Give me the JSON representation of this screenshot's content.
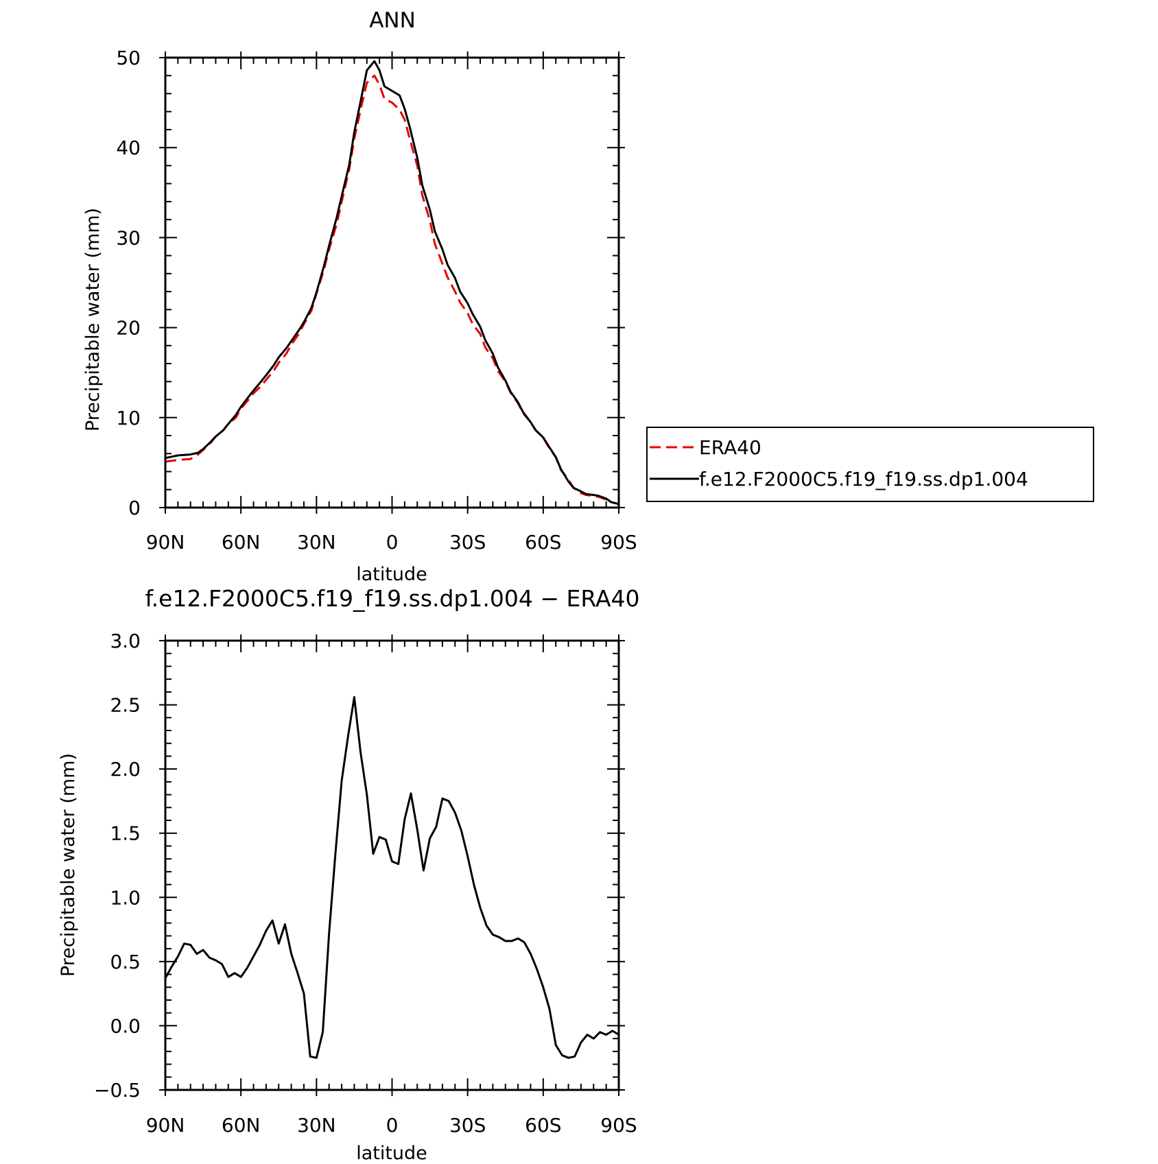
{
  "chart_data": [
    {
      "type": "line",
      "title": "ANN",
      "xlabel": "latitude",
      "ylabel": "Precipitable water (mm)",
      "x_ticks": [
        {
          "value": 90,
          "label": "90N"
        },
        {
          "value": 60,
          "label": "60N"
        },
        {
          "value": 30,
          "label": "30N"
        },
        {
          "value": 0,
          "label": "0"
        },
        {
          "value": -30,
          "label": "30S"
        },
        {
          "value": -60,
          "label": "60S"
        },
        {
          "value": -90,
          "label": "90S"
        }
      ],
      "y_ticks": [
        {
          "value": 0,
          "label": "0"
        },
        {
          "value": 10,
          "label": "10"
        },
        {
          "value": 20,
          "label": "20"
        },
        {
          "value": 30,
          "label": "30"
        },
        {
          "value": 40,
          "label": "40"
        },
        {
          "value": 50,
          "label": "50"
        }
      ],
      "xlim": [
        90,
        -90
      ],
      "ylim": [
        0,
        50
      ],
      "grid": false,
      "legend_position": "right",
      "series": [
        {
          "name": "ERA40",
          "color": "#e60000",
          "style": "dashed",
          "x": [
            90,
            85,
            80,
            77,
            75,
            72,
            70,
            67,
            65,
            62,
            60,
            57,
            55,
            52,
            50,
            47,
            45,
            42,
            40,
            37,
            35,
            32,
            30,
            27,
            25,
            22,
            20,
            17,
            15,
            12,
            10,
            7,
            5,
            3,
            0,
            -3,
            -5,
            -7,
            -10,
            -12,
            -15,
            -17,
            -20,
            -22,
            -25,
            -27,
            -30,
            -32,
            -35,
            -37,
            -40,
            -42,
            -45,
            -47,
            -50,
            -52,
            -55,
            -57,
            -60,
            -62,
            -65,
            -67,
            -70,
            -72,
            -75,
            -77,
            -80,
            -82,
            -85,
            -87,
            -90
          ],
          "y": [
            5.1,
            5.3,
            5.4,
            5.9,
            6.4,
            7.2,
            7.9,
            8.6,
            9.3,
            10.0,
            11.0,
            12.0,
            12.7,
            13.5,
            14.2,
            15.2,
            16.1,
            17.1,
            18.1,
            19.3,
            20.4,
            21.9,
            23.8,
            26.5,
            28.7,
            31.5,
            34.0,
            37.6,
            41.0,
            44.8,
            47.2,
            48.0,
            47.0,
            45.4,
            45.0,
            44.2,
            43.1,
            41.0,
            38.0,
            34.7,
            31.9,
            29.3,
            27.1,
            25.6,
            24.0,
            22.8,
            21.6,
            20.4,
            19.3,
            17.8,
            16.6,
            15.2,
            14.0,
            12.8,
            11.6,
            10.5,
            9.5,
            8.6,
            7.8,
            6.8,
            5.6,
            4.2,
            3.1,
            2.2,
            1.6,
            1.4,
            1.3,
            1.2,
            0.9,
            0.6,
            0.4
          ]
        },
        {
          "name": "f.e12.F2000C5.f19_f19.ss.dp1.004",
          "color": "#000000",
          "style": "solid",
          "x": [
            90,
            85,
            80,
            77,
            75,
            72,
            70,
            67,
            65,
            62,
            60,
            57,
            55,
            52,
            50,
            47,
            45,
            42,
            40,
            37,
            35,
            32,
            30,
            27,
            25,
            22,
            20,
            17,
            15,
            12,
            10,
            7,
            5,
            3,
            0,
            -3,
            -5,
            -7,
            -10,
            -12,
            -15,
            -17,
            -20,
            -22,
            -25,
            -27,
            -30,
            -32,
            -35,
            -37,
            -40,
            -42,
            -45,
            -47,
            -50,
            -52,
            -55,
            -57,
            -60,
            -62,
            -65,
            -67,
            -70,
            -72,
            -75,
            -77,
            -80,
            -82,
            -85,
            -87,
            -90
          ],
          "y": [
            5.5,
            5.8,
            5.9,
            6.1,
            6.5,
            7.3,
            7.9,
            8.6,
            9.3,
            10.3,
            11.2,
            12.3,
            13.0,
            14.0,
            14.7,
            15.8,
            16.7,
            17.7,
            18.5,
            19.7,
            20.6,
            22.2,
            23.9,
            26.9,
            29.1,
            32.2,
            34.6,
            38.1,
            41.7,
            45.8,
            48.6,
            49.6,
            48.6,
            46.8,
            46.3,
            45.8,
            44.3,
            42.3,
            38.9,
            35.8,
            33.1,
            30.7,
            28.7,
            27.0,
            25.5,
            24.0,
            22.7,
            21.5,
            20.1,
            18.6,
            17.1,
            15.6,
            14.1,
            12.9,
            11.7,
            10.6,
            9.5,
            8.6,
            7.8,
            6.9,
            5.6,
            4.3,
            2.9,
            2.2,
            1.8,
            1.5,
            1.4,
            1.3,
            1.0,
            0.6,
            0.4
          ]
        }
      ]
    },
    {
      "type": "line",
      "title": "f.e12.F2000C5.f19_f19.ss.dp1.004 − ERA40",
      "xlabel": "latitude",
      "ylabel": "Precipitable water (mm)",
      "x_ticks": [
        {
          "value": 90,
          "label": "90N"
        },
        {
          "value": 60,
          "label": "60N"
        },
        {
          "value": 30,
          "label": "30N"
        },
        {
          "value": 0,
          "label": "0"
        },
        {
          "value": -30,
          "label": "30S"
        },
        {
          "value": -60,
          "label": "60S"
        },
        {
          "value": -90,
          "label": "90S"
        }
      ],
      "y_ticks": [
        {
          "value": -0.5,
          "label": "−0.5"
        },
        {
          "value": 0.0,
          "label": "0.0"
        },
        {
          "value": 0.5,
          "label": "0.5"
        },
        {
          "value": 1.0,
          "label": "1.0"
        },
        {
          "value": 1.5,
          "label": "1.5"
        },
        {
          "value": 2.0,
          "label": "2.0"
        },
        {
          "value": 2.5,
          "label": "2.5"
        },
        {
          "value": 3.0,
          "label": "3.0"
        }
      ],
      "xlim": [
        90,
        -90
      ],
      "ylim": [
        -0.5,
        3.0
      ],
      "grid": false,
      "series": [
        {
          "color": "#000000",
          "style": "solid",
          "x": [
            90,
            87.5,
            85,
            82.5,
            80,
            77.5,
            75,
            72.5,
            70,
            67.5,
            65,
            62.5,
            60,
            57.5,
            55,
            52.5,
            50,
            47.5,
            45,
            42.5,
            40,
            37.5,
            35,
            32.5,
            30,
            27.5,
            25,
            22.5,
            20,
            17.5,
            15,
            12.5,
            10,
            7.5,
            5,
            2.5,
            0,
            -2.5,
            -5,
            -7.5,
            -10,
            -12.5,
            -15,
            -17.5,
            -20,
            -22.5,
            -25,
            -27.5,
            -30,
            -32.5,
            -35,
            -37.5,
            -40,
            -42.5,
            -45,
            -47.5,
            -50,
            -52.5,
            -55,
            -57.5,
            -60,
            -62.5,
            -65,
            -67.5,
            -70,
            -72.5,
            -75,
            -77.5,
            -80,
            -82.5,
            -85,
            -87.5,
            -90
          ],
          "y": [
            0.37,
            0.46,
            0.54,
            0.64,
            0.63,
            0.56,
            0.59,
            0.53,
            0.51,
            0.48,
            0.38,
            0.41,
            0.38,
            0.45,
            0.54,
            0.63,
            0.74,
            0.82,
            0.64,
            0.79,
            0.56,
            0.41,
            0.25,
            -0.24,
            -0.25,
            -0.05,
            0.72,
            1.34,
            1.91,
            2.25,
            2.56,
            2.13,
            1.8,
            1.34,
            1.47,
            1.45,
            1.28,
            1.26,
            1.61,
            1.81,
            1.53,
            1.21,
            1.46,
            1.55,
            1.77,
            1.75,
            1.66,
            1.52,
            1.32,
            1.1,
            0.92,
            0.78,
            0.71,
            0.69,
            0.66,
            0.66,
            0.68,
            0.65,
            0.56,
            0.44,
            0.3,
            0.13,
            -0.15,
            -0.23,
            -0.25,
            -0.24,
            -0.13,
            -0.07,
            -0.1,
            -0.05,
            -0.07,
            -0.04,
            -0.07
          ]
        }
      ]
    }
  ]
}
